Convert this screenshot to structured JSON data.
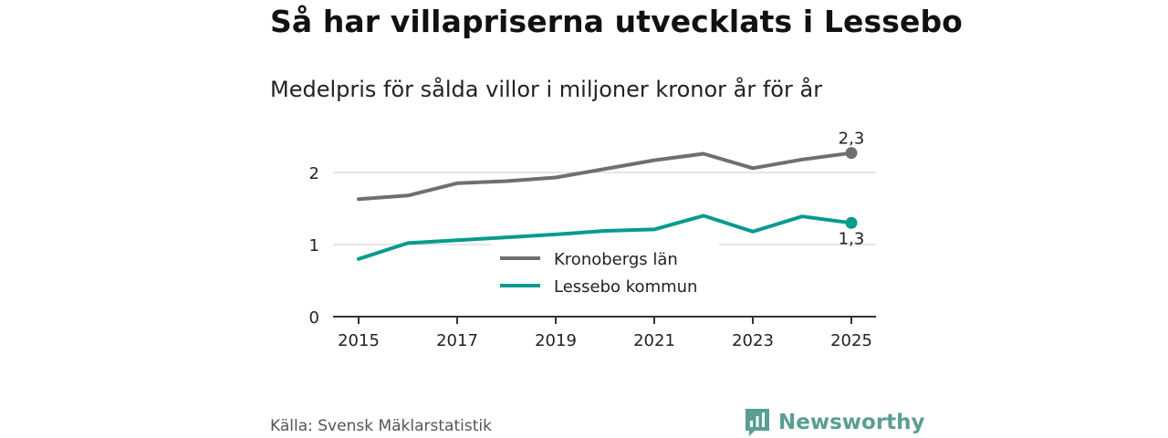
{
  "title": "Så har villapriserna utvecklats i Lessebo",
  "subtitle": "Medelpris för sålda villor i miljoner kronor år för år",
  "source": "Källa: Svensk Mäklarstatistik",
  "brand": "Newsworthy",
  "colors": {
    "kronoberg": "#6f6e74",
    "lessebo": "#079b8e",
    "grid": "#dddddd",
    "axis": "#333333",
    "brand": "#5a9e94"
  },
  "chart_data": {
    "type": "line",
    "title": "Så har villapriserna utvecklats i Lessebo",
    "subtitle": "Medelpris för sålda villor i miljoner kronor år för år",
    "xlabel": "",
    "ylabel": "",
    "x": [
      2015,
      2016,
      2017,
      2018,
      2019,
      2020,
      2021,
      2022,
      2023,
      2024,
      2025
    ],
    "xticks": [
      "2015",
      "2017",
      "2019",
      "2021",
      "2023",
      "2025"
    ],
    "yticks": [
      "0",
      "1",
      "2"
    ],
    "ylim": [
      0,
      2.5
    ],
    "grid": true,
    "legend_position": "center",
    "series": [
      {
        "name": "Kronobergs län",
        "values": [
          1.63,
          1.68,
          1.85,
          1.88,
          1.93,
          2.05,
          2.17,
          2.26,
          2.06,
          2.18,
          2.27
        ],
        "end_label": "2,3"
      },
      {
        "name": "Lessebo kommun",
        "values": [
          0.8,
          1.02,
          1.06,
          1.1,
          1.14,
          1.19,
          1.21,
          1.4,
          1.18,
          1.39,
          1.3
        ],
        "end_label": "1,3"
      }
    ]
  }
}
